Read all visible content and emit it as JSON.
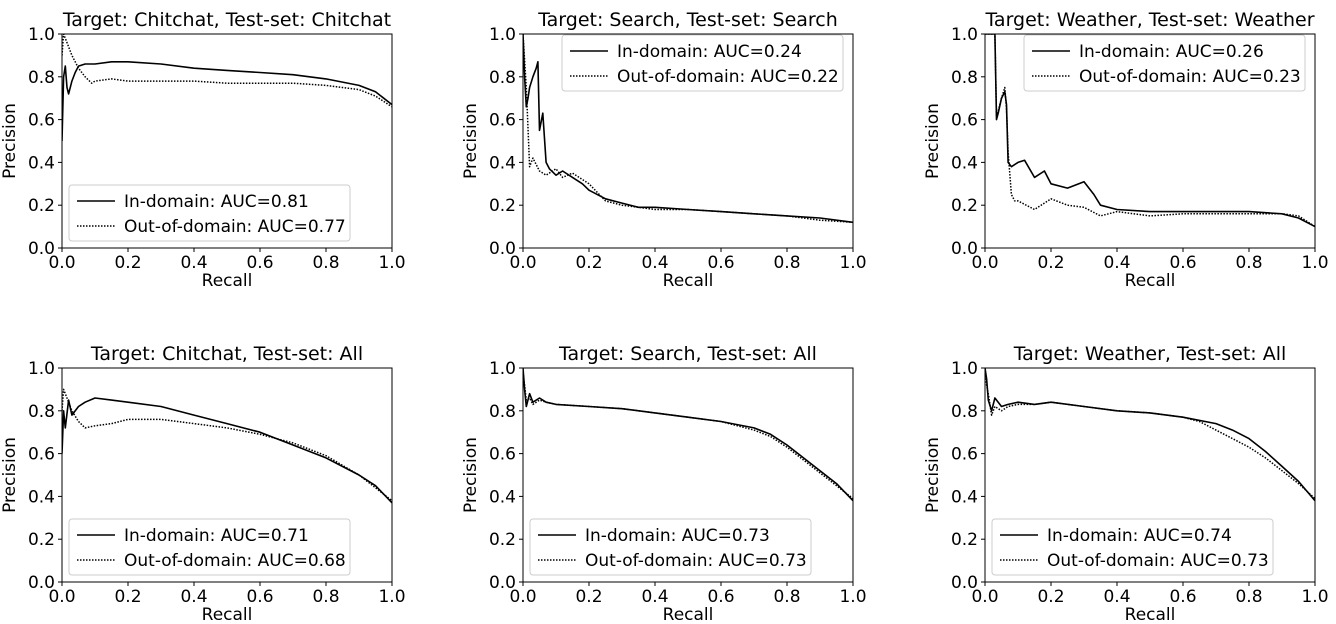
{
  "chart_data": [
    {
      "type": "line",
      "title": "Target: Chitchat, Test-set: Chitchat",
      "xlabel": "Recall",
      "ylabel": "Precision",
      "xlim": [
        0.0,
        1.0
      ],
      "ylim": [
        0.0,
        1.0
      ],
      "xticks": [
        "0.0",
        "0.2",
        "0.4",
        "0.6",
        "0.8",
        "1.0"
      ],
      "yticks": [
        "0.0",
        "0.2",
        "0.4",
        "0.6",
        "0.8",
        "1.0"
      ],
      "grid": false,
      "legend_position": "lower-left",
      "series": [
        {
          "name": "In-domain: AUC=0.81",
          "style": "solid",
          "x": [
            0.0,
            0.005,
            0.01,
            0.015,
            0.02,
            0.03,
            0.04,
            0.05,
            0.07,
            0.1,
            0.15,
            0.2,
            0.3,
            0.4,
            0.5,
            0.6,
            0.7,
            0.8,
            0.9,
            0.95,
            1.0
          ],
          "y": [
            0.5,
            0.8,
            0.85,
            0.75,
            0.72,
            0.78,
            0.82,
            0.85,
            0.86,
            0.86,
            0.87,
            0.87,
            0.86,
            0.84,
            0.83,
            0.82,
            0.81,
            0.79,
            0.76,
            0.73,
            0.67
          ]
        },
        {
          "name": "Out-of-domain: AUC=0.77",
          "style": "dotted",
          "x": [
            0.0,
            0.005,
            0.01,
            0.02,
            0.03,
            0.05,
            0.07,
            0.09,
            0.1,
            0.15,
            0.2,
            0.3,
            0.4,
            0.5,
            0.6,
            0.7,
            0.8,
            0.9,
            0.95,
            1.0
          ],
          "y": [
            0.9,
            1.0,
            0.98,
            0.94,
            0.9,
            0.84,
            0.8,
            0.77,
            0.78,
            0.79,
            0.78,
            0.78,
            0.78,
            0.77,
            0.77,
            0.77,
            0.76,
            0.74,
            0.71,
            0.66
          ]
        }
      ]
    },
    {
      "type": "line",
      "title": "Target: Search, Test-set: Search",
      "xlabel": "Recall",
      "ylabel": "Precision",
      "xlim": [
        0.0,
        1.0
      ],
      "ylim": [
        0.0,
        1.0
      ],
      "xticks": [
        "0.0",
        "0.2",
        "0.4",
        "0.6",
        "0.8",
        "1.0"
      ],
      "yticks": [
        "0.0",
        "0.2",
        "0.4",
        "0.6",
        "0.8",
        "1.0"
      ],
      "grid": false,
      "legend_position": "upper-right",
      "series": [
        {
          "name": "In-domain: AUC=0.24",
          "style": "solid",
          "x": [
            0.0,
            0.005,
            0.01,
            0.015,
            0.02,
            0.03,
            0.04,
            0.045,
            0.05,
            0.06,
            0.07,
            0.08,
            0.1,
            0.12,
            0.15,
            0.18,
            0.2,
            0.25,
            0.3,
            0.35,
            0.4,
            0.5,
            0.6,
            0.7,
            0.8,
            0.9,
            1.0
          ],
          "y": [
            1.0,
            0.8,
            0.66,
            0.7,
            0.75,
            0.8,
            0.84,
            0.87,
            0.55,
            0.63,
            0.4,
            0.37,
            0.34,
            0.36,
            0.33,
            0.3,
            0.27,
            0.23,
            0.21,
            0.19,
            0.19,
            0.18,
            0.17,
            0.16,
            0.15,
            0.14,
            0.12
          ]
        },
        {
          "name": "Out-of-domain: AUC=0.22",
          "style": "dotted",
          "x": [
            0.0,
            0.01,
            0.015,
            0.02,
            0.03,
            0.05,
            0.07,
            0.1,
            0.12,
            0.15,
            0.2,
            0.25,
            0.3,
            0.35,
            0.4,
            0.5,
            0.6,
            0.7,
            0.8,
            0.9,
            1.0
          ],
          "y": [
            1.0,
            0.75,
            0.56,
            0.38,
            0.42,
            0.36,
            0.34,
            0.37,
            0.33,
            0.35,
            0.3,
            0.22,
            0.2,
            0.19,
            0.18,
            0.18,
            0.17,
            0.16,
            0.15,
            0.13,
            0.12
          ]
        }
      ]
    },
    {
      "type": "line",
      "title": "Target: Weather, Test-set: Weather",
      "xlabel": "Recall",
      "ylabel": "Precision",
      "xlim": [
        0.0,
        1.0
      ],
      "ylim": [
        0.0,
        1.0
      ],
      "xticks": [
        "0.0",
        "0.2",
        "0.4",
        "0.6",
        "0.8",
        "1.0"
      ],
      "yticks": [
        "0.0",
        "0.2",
        "0.4",
        "0.6",
        "0.8",
        "1.0"
      ],
      "grid": false,
      "legend_position": "upper-right",
      "series": [
        {
          "name": "In-domain: AUC=0.26",
          "style": "solid",
          "x": [
            0.0,
            0.03,
            0.035,
            0.04,
            0.05,
            0.06,
            0.065,
            0.07,
            0.08,
            0.1,
            0.12,
            0.15,
            0.18,
            0.2,
            0.25,
            0.3,
            0.33,
            0.35,
            0.4,
            0.5,
            0.6,
            0.7,
            0.8,
            0.9,
            0.95,
            1.0
          ],
          "y": [
            1.0,
            1.0,
            0.6,
            0.63,
            0.7,
            0.73,
            0.67,
            0.4,
            0.38,
            0.4,
            0.41,
            0.33,
            0.36,
            0.3,
            0.28,
            0.31,
            0.25,
            0.2,
            0.18,
            0.17,
            0.17,
            0.17,
            0.17,
            0.16,
            0.14,
            0.1
          ]
        },
        {
          "name": "Out-of-domain: AUC=0.23",
          "style": "dotted",
          "x": [
            0.0,
            0.03,
            0.035,
            0.04,
            0.05,
            0.06,
            0.065,
            0.07,
            0.08,
            0.09,
            0.1,
            0.15,
            0.2,
            0.25,
            0.3,
            0.35,
            0.4,
            0.5,
            0.6,
            0.7,
            0.8,
            0.9,
            0.95,
            1.0
          ],
          "y": [
            1.0,
            1.0,
            0.62,
            0.64,
            0.7,
            0.75,
            0.65,
            0.45,
            0.25,
            0.22,
            0.22,
            0.18,
            0.23,
            0.2,
            0.19,
            0.15,
            0.17,
            0.15,
            0.16,
            0.16,
            0.16,
            0.16,
            0.15,
            0.1
          ]
        }
      ]
    },
    {
      "type": "line",
      "title": "Target: Chitchat, Test-set: All",
      "xlabel": "Recall",
      "ylabel": "Precision",
      "xlim": [
        0.0,
        1.0
      ],
      "ylim": [
        0.0,
        1.0
      ],
      "xticks": [
        "0.0",
        "0.2",
        "0.4",
        "0.6",
        "0.8",
        "1.0"
      ],
      "yticks": [
        "0.0",
        "0.2",
        "0.4",
        "0.6",
        "0.8",
        "1.0"
      ],
      "grid": false,
      "legend_position": "lower-left",
      "series": [
        {
          "name": "In-domain: AUC=0.71",
          "style": "solid",
          "x": [
            0.0,
            0.005,
            0.01,
            0.02,
            0.03,
            0.05,
            0.07,
            0.1,
            0.15,
            0.2,
            0.3,
            0.4,
            0.5,
            0.6,
            0.7,
            0.8,
            0.9,
            0.95,
            1.0
          ],
          "y": [
            0.6,
            0.8,
            0.72,
            0.85,
            0.78,
            0.82,
            0.84,
            0.86,
            0.85,
            0.84,
            0.82,
            0.78,
            0.74,
            0.7,
            0.64,
            0.58,
            0.5,
            0.45,
            0.37
          ]
        },
        {
          "name": "Out-of-domain: AUC=0.68",
          "style": "dotted",
          "x": [
            0.0,
            0.005,
            0.01,
            0.02,
            0.03,
            0.05,
            0.07,
            0.1,
            0.15,
            0.2,
            0.3,
            0.4,
            0.5,
            0.6,
            0.7,
            0.8,
            0.9,
            0.95,
            1.0
          ],
          "y": [
            0.8,
            0.9,
            0.88,
            0.84,
            0.8,
            0.75,
            0.72,
            0.73,
            0.74,
            0.76,
            0.76,
            0.74,
            0.72,
            0.69,
            0.65,
            0.59,
            0.5,
            0.44,
            0.38
          ]
        }
      ]
    },
    {
      "type": "line",
      "title": "Target: Search, Test-set: All",
      "xlabel": "Recall",
      "ylabel": "Precision",
      "xlim": [
        0.0,
        1.0
      ],
      "ylim": [
        0.0,
        1.0
      ],
      "xticks": [
        "0.0",
        "0.2",
        "0.4",
        "0.6",
        "0.8",
        "1.0"
      ],
      "yticks": [
        "0.0",
        "0.2",
        "0.4",
        "0.6",
        "0.8",
        "1.0"
      ],
      "grid": false,
      "legend_position": "lower-left",
      "series": [
        {
          "name": "In-domain: AUC=0.73",
          "style": "solid",
          "x": [
            0.0,
            0.005,
            0.01,
            0.02,
            0.03,
            0.05,
            0.07,
            0.1,
            0.2,
            0.3,
            0.4,
            0.5,
            0.6,
            0.7,
            0.75,
            0.8,
            0.85,
            0.9,
            0.95,
            1.0
          ],
          "y": [
            1.0,
            0.9,
            0.82,
            0.88,
            0.84,
            0.86,
            0.84,
            0.83,
            0.82,
            0.81,
            0.79,
            0.77,
            0.75,
            0.72,
            0.69,
            0.64,
            0.58,
            0.52,
            0.46,
            0.38
          ]
        },
        {
          "name": "Out-of-domain: AUC=0.73",
          "style": "dotted",
          "x": [
            0.0,
            0.005,
            0.01,
            0.02,
            0.03,
            0.05,
            0.07,
            0.1,
            0.2,
            0.3,
            0.4,
            0.5,
            0.6,
            0.7,
            0.75,
            0.8,
            0.85,
            0.9,
            0.95,
            1.0
          ],
          "y": [
            0.98,
            0.92,
            0.85,
            0.86,
            0.83,
            0.85,
            0.84,
            0.83,
            0.82,
            0.81,
            0.79,
            0.77,
            0.75,
            0.71,
            0.68,
            0.63,
            0.57,
            0.51,
            0.45,
            0.39
          ]
        }
      ]
    },
    {
      "type": "line",
      "title": "Target: Weather, Test-set: All",
      "xlabel": "Recall",
      "ylabel": "Precision",
      "xlim": [
        0.0,
        1.0
      ],
      "ylim": [
        0.0,
        1.0
      ],
      "xticks": [
        "0.0",
        "0.2",
        "0.4",
        "0.6",
        "0.8",
        "1.0"
      ],
      "yticks": [
        "0.0",
        "0.2",
        "0.4",
        "0.6",
        "0.8",
        "1.0"
      ],
      "grid": false,
      "legend_position": "lower-left",
      "series": [
        {
          "name": "In-domain: AUC=0.74",
          "style": "solid",
          "x": [
            0.0,
            0.005,
            0.01,
            0.02,
            0.03,
            0.05,
            0.07,
            0.1,
            0.15,
            0.2,
            0.3,
            0.4,
            0.5,
            0.6,
            0.7,
            0.75,
            0.8,
            0.85,
            0.9,
            0.95,
            1.0
          ],
          "y": [
            1.0,
            0.95,
            0.85,
            0.8,
            0.86,
            0.82,
            0.83,
            0.84,
            0.83,
            0.84,
            0.82,
            0.8,
            0.79,
            0.77,
            0.74,
            0.71,
            0.67,
            0.61,
            0.54,
            0.47,
            0.38
          ]
        },
        {
          "name": "Out-of-domain: AUC=0.73",
          "style": "dotted",
          "x": [
            0.0,
            0.005,
            0.01,
            0.02,
            0.03,
            0.05,
            0.07,
            0.1,
            0.15,
            0.2,
            0.3,
            0.4,
            0.5,
            0.6,
            0.65,
            0.7,
            0.75,
            0.8,
            0.85,
            0.9,
            0.95,
            1.0
          ],
          "y": [
            0.98,
            0.92,
            0.88,
            0.78,
            0.82,
            0.8,
            0.82,
            0.83,
            0.83,
            0.84,
            0.82,
            0.8,
            0.79,
            0.77,
            0.75,
            0.71,
            0.67,
            0.63,
            0.58,
            0.52,
            0.46,
            0.39
          ]
        }
      ]
    }
  ]
}
